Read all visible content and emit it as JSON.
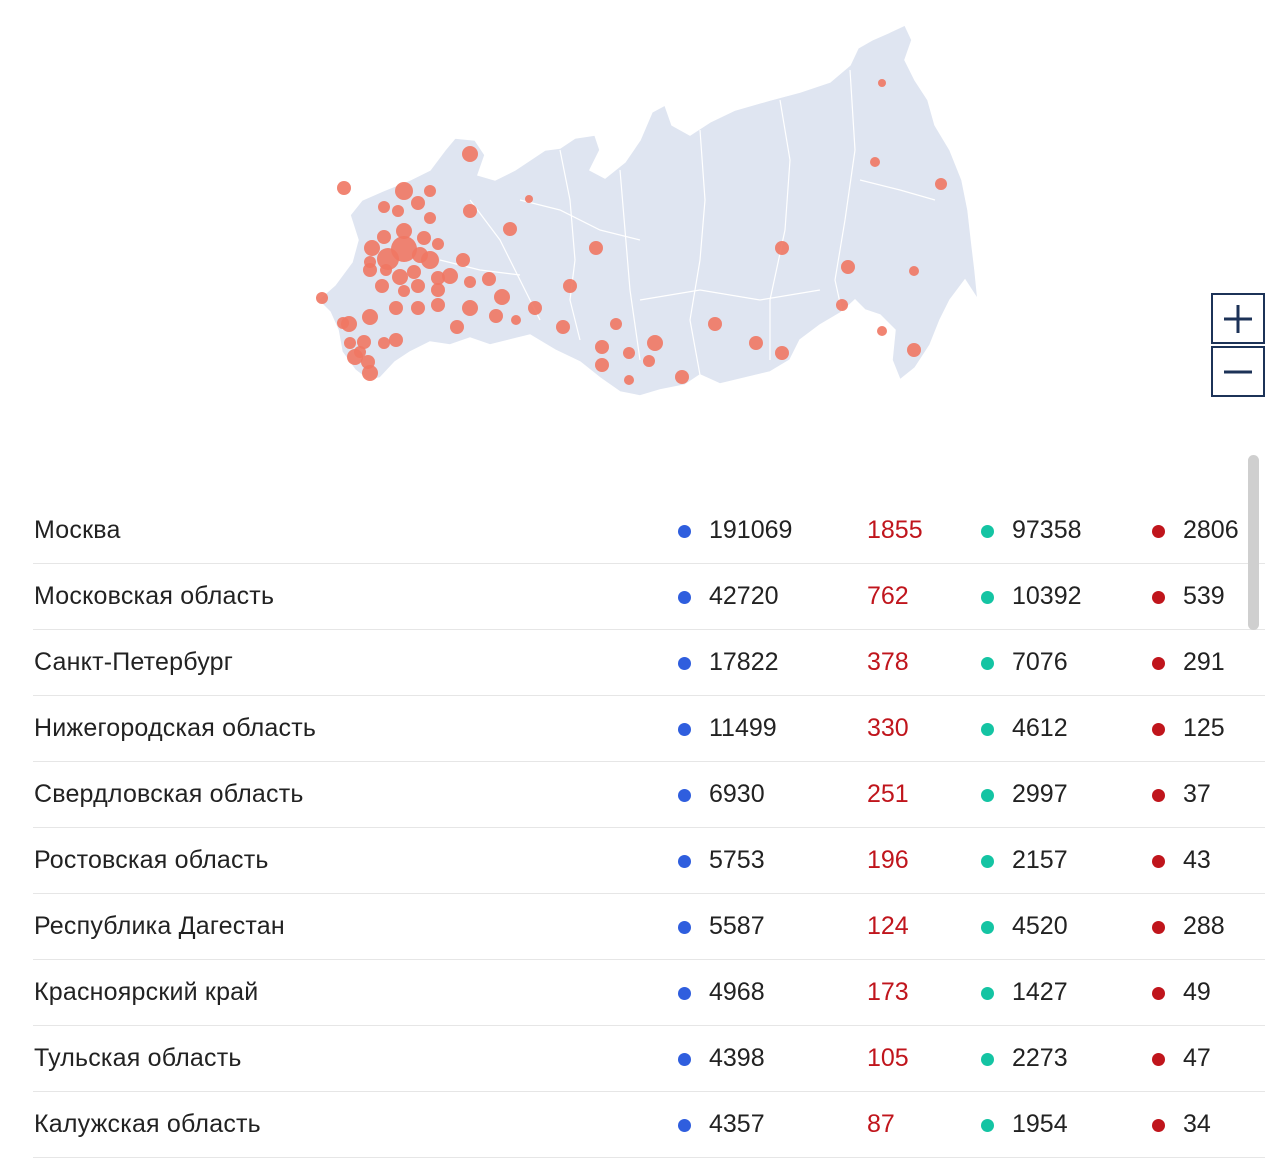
{
  "colors": {
    "land": "#dfe5f1",
    "border": "#ffffff",
    "bubble": "#f07763",
    "cases_dot": "#2f5ede",
    "recovered_dot": "#14c4a3",
    "deaths_dot": "#c0151c",
    "new_cases_text": "#c0151c",
    "zoom_border": "#1c3257"
  },
  "icons": {
    "zoom_in": "plus-icon",
    "zoom_out": "minus-icon"
  },
  "rows": [
    {
      "region": "Москва",
      "cases": "191069",
      "new": "1855",
      "recovered": "97358",
      "deaths": "2806"
    },
    {
      "region": "Московская область",
      "cases": "42720",
      "new": "762",
      "recovered": "10392",
      "deaths": "539"
    },
    {
      "region": "Санкт-Петербург",
      "cases": "17822",
      "new": "378",
      "recovered": "7076",
      "deaths": "291"
    },
    {
      "region": "Нижегородская область",
      "cases": "11499",
      "new": "330",
      "recovered": "4612",
      "deaths": "125"
    },
    {
      "region": "Свердловская область",
      "cases": "6930",
      "new": "251",
      "recovered": "2997",
      "deaths": "37"
    },
    {
      "region": "Ростовская область",
      "cases": "5753",
      "new": "196",
      "recovered": "2157",
      "deaths": "43"
    },
    {
      "region": "Республика Дагестан",
      "cases": "5587",
      "new": "124",
      "recovered": "4520",
      "deaths": "288"
    },
    {
      "region": "Красноярский край",
      "cases": "4968",
      "new": "173",
      "recovered": "1427",
      "deaths": "49"
    },
    {
      "region": "Тульская область",
      "cases": "4398",
      "new": "105",
      "recovered": "2273",
      "deaths": "47"
    },
    {
      "region": "Калужская область",
      "cases": "4357",
      "new": "87",
      "recovered": "1954",
      "deaths": "34"
    }
  ]
}
